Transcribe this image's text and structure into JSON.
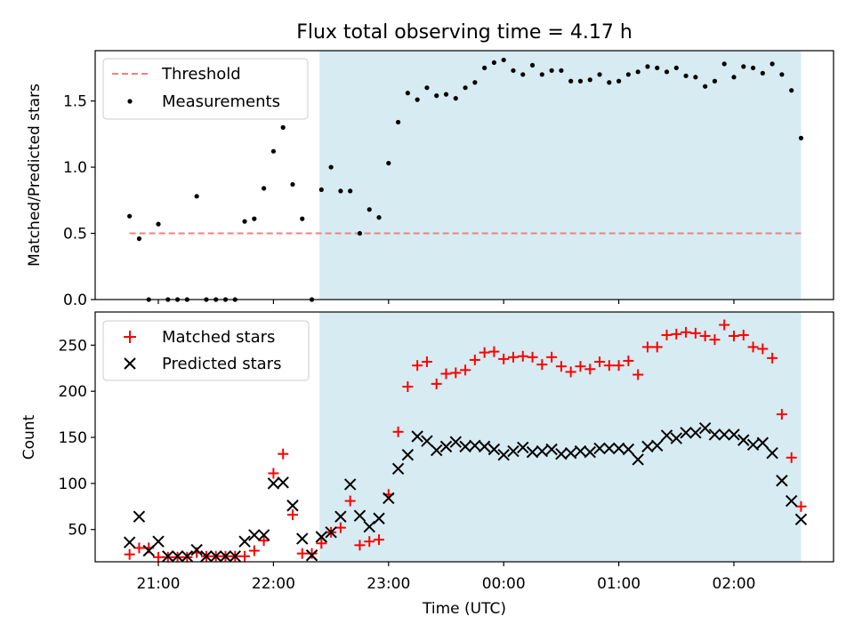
{
  "figure": {
    "title": "Flux total observing time = 4.17 h",
    "xlabel": "Time (UTC)",
    "xtick_labels": [
      "21:00",
      "22:00",
      "23:00",
      "00:00",
      "01:00",
      "02:00"
    ],
    "shade_color": "#add8e6",
    "shade_range": [
      "22:24",
      "02:35"
    ]
  },
  "chart_data": [
    {
      "type": "scatter",
      "ylabel": "Matched/Predicted stars",
      "ylim": [
        0,
        1.88
      ],
      "yticks": [
        0.0,
        0.5,
        1.0,
        1.5
      ],
      "ytick_labels": [
        "0.0",
        "0.5",
        "1.0",
        "1.5"
      ],
      "legend_position": "top-left",
      "threshold": {
        "name": "Threshold",
        "value": 0.5,
        "x_range": [
          "20:45",
          "02:35"
        ],
        "color": "#f08080"
      },
      "series": [
        {
          "name": "Measurements",
          "color": "#000000",
          "x": [
            "20:45",
            "20:50",
            "20:55",
            "21:00",
            "21:05",
            "21:10",
            "21:15",
            "21:20",
            "21:25",
            "21:30",
            "21:35",
            "21:40",
            "21:45",
            "21:50",
            "21:55",
            "22:00",
            "22:05",
            "22:10",
            "22:15",
            "22:20",
            "22:25",
            "22:30",
            "22:35",
            "22:40",
            "22:45",
            "22:50",
            "22:55",
            "23:00",
            "23:05",
            "23:10",
            "23:15",
            "23:20",
            "23:25",
            "23:30",
            "23:35",
            "23:40",
            "23:45",
            "23:50",
            "23:55",
            "00:00",
            "00:05",
            "00:10",
            "00:15",
            "00:20",
            "00:25",
            "00:30",
            "00:35",
            "00:40",
            "00:45",
            "00:50",
            "00:55",
            "01:00",
            "01:05",
            "01:10",
            "01:15",
            "01:20",
            "01:25",
            "01:30",
            "01:35",
            "01:40",
            "01:45",
            "01:50",
            "01:55",
            "02:00",
            "02:05",
            "02:10",
            "02:15",
            "02:20",
            "02:25",
            "02:30",
            "02:35"
          ],
          "y": [
            0.63,
            0.46,
            0.0,
            0.57,
            0.0,
            0.0,
            0.0,
            0.78,
            0.0,
            0.0,
            0.0,
            0.0,
            0.59,
            0.61,
            0.84,
            1.12,
            1.3,
            0.87,
            0.61,
            0.0,
            0.83,
            1.0,
            0.82,
            0.82,
            0.5,
            0.68,
            0.62,
            1.03,
            1.34,
            1.56,
            1.51,
            1.6,
            1.54,
            1.55,
            1.52,
            1.6,
            1.64,
            1.75,
            1.79,
            1.81,
            1.73,
            1.7,
            1.77,
            1.7,
            1.73,
            1.73,
            1.65,
            1.65,
            1.66,
            1.7,
            1.64,
            1.65,
            1.7,
            1.72,
            1.76,
            1.75,
            1.72,
            1.75,
            1.69,
            1.68,
            1.61,
            1.65,
            1.78,
            1.68,
            1.76,
            1.75,
            1.71,
            1.78,
            1.7,
            1.58,
            1.22
          ]
        }
      ]
    },
    {
      "type": "scatter",
      "ylabel": "Count",
      "ylim": [
        15,
        286
      ],
      "yticks": [
        50,
        100,
        150,
        200,
        250
      ],
      "ytick_labels": [
        "50",
        "100",
        "150",
        "200",
        "250"
      ],
      "legend_position": "top-left",
      "x": [
        "20:45",
        "20:50",
        "20:55",
        "21:00",
        "21:05",
        "21:10",
        "21:15",
        "21:20",
        "21:25",
        "21:30",
        "21:35",
        "21:40",
        "21:45",
        "21:50",
        "21:55",
        "22:00",
        "22:05",
        "22:10",
        "22:15",
        "22:20",
        "22:25",
        "22:30",
        "22:35",
        "22:40",
        "22:45",
        "22:50",
        "22:55",
        "23:00",
        "23:05",
        "23:10",
        "23:15",
        "23:20",
        "23:25",
        "23:30",
        "23:35",
        "23:40",
        "23:45",
        "23:50",
        "23:55",
        "00:00",
        "00:05",
        "00:10",
        "00:15",
        "00:20",
        "00:25",
        "00:30",
        "00:35",
        "00:40",
        "00:45",
        "00:50",
        "00:55",
        "01:00",
        "01:05",
        "01:10",
        "01:15",
        "01:20",
        "01:25",
        "01:30",
        "01:35",
        "01:40",
        "01:45",
        "01:50",
        "01:55",
        "02:00",
        "02:05",
        "02:10",
        "02:15",
        "02:20",
        "02:25",
        "02:30",
        "02:35"
      ],
      "series": [
        {
          "name": "Matched stars",
          "marker": "plus",
          "color": "#ff0000",
          "values": [
            23,
            30,
            30,
            20,
            20,
            20,
            20,
            25,
            21,
            21,
            21,
            21,
            21,
            27,
            38,
            111,
            132,
            66,
            24,
            24,
            35,
            47,
            52,
            81,
            33,
            37,
            39,
            88,
            156,
            205,
            228,
            232,
            208,
            219,
            220,
            223,
            234,
            242,
            243,
            235,
            237,
            238,
            237,
            229,
            237,
            227,
            221,
            227,
            224,
            232,
            228,
            228,
            233,
            218,
            248,
            248,
            261,
            262,
            264,
            263,
            260,
            256,
            272,
            260,
            261,
            248,
            246,
            236,
            175,
            128,
            75
          ]
        },
        {
          "name": "Predicted stars",
          "marker": "x",
          "color": "#000000",
          "values": [
            36,
            64,
            27,
            37,
            21,
            21,
            21,
            28,
            21,
            21,
            21,
            21,
            37,
            44,
            44,
            100,
            101,
            76,
            40,
            22,
            42,
            47,
            64,
            99,
            65,
            53,
            62,
            84,
            116,
            131,
            151,
            146,
            136,
            140,
            145,
            140,
            141,
            140,
            137,
            131,
            135,
            139,
            134,
            135,
            137,
            132,
            133,
            135,
            134,
            138,
            138,
            138,
            137,
            126,
            140,
            141,
            152,
            149,
            155,
            155,
            160,
            153,
            153,
            153,
            147,
            142,
            144,
            133,
            103,
            81,
            61
          ]
        }
      ]
    }
  ]
}
